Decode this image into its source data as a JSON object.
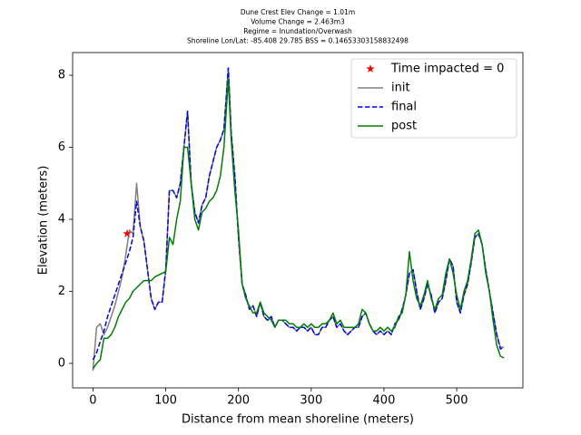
{
  "chart_data": {
    "type": "line",
    "title": [
      "Dune Crest Elev Change = 1.01m",
      "Volume Change = 2.463m3",
      "Regime = Inundation/Overwash",
      "Shoreline Lon/Lat: -85.408 29.785   BSS = 0.14653303158832498"
    ],
    "xlabel": "Distance from mean shoreline (meters)",
    "ylabel": "Elevation (meters)",
    "xlim": [
      -28,
      591
    ],
    "ylim": [
      -0.68,
      8.63
    ],
    "xticks": [
      0,
      100,
      200,
      300,
      400,
      500
    ],
    "yticks": [
      0,
      2,
      4,
      6,
      8
    ],
    "legend": "upper right",
    "x": [
      0,
      5,
      10,
      15,
      20,
      25,
      30,
      35,
      40,
      45,
      50,
      55,
      60,
      65,
      70,
      75,
      80,
      85,
      90,
      95,
      100,
      105,
      110,
      115,
      120,
      125,
      130,
      135,
      140,
      145,
      150,
      155,
      160,
      165,
      170,
      175,
      180,
      186,
      190,
      195,
      200,
      205,
      210,
      215,
      220,
      225,
      230,
      235,
      240,
      245,
      250,
      255,
      260,
      265,
      270,
      275,
      280,
      285,
      290,
      295,
      300,
      305,
      310,
      315,
      320,
      325,
      330,
      335,
      340,
      345,
      350,
      355,
      360,
      365,
      370,
      375,
      380,
      385,
      390,
      395,
      400,
      405,
      410,
      415,
      420,
      425,
      430,
      435,
      440,
      445,
      450,
      455,
      460,
      465,
      470,
      475,
      480,
      485,
      490,
      495,
      500,
      505,
      510,
      515,
      520,
      525,
      530,
      535,
      540,
      545,
      550,
      555,
      560,
      565
    ],
    "series": [
      {
        "name": "Time impacted = 0",
        "color": "#ff0000",
        "style": "marker",
        "x": [
          47
        ],
        "values": [
          3.6
        ]
      },
      {
        "name": "init",
        "color": "#808080",
        "style": "solid",
        "values": [
          -0.2,
          1.0,
          1.1,
          0.8,
          1.0,
          1.3,
          1.6,
          2.0,
          2.4,
          3.0,
          3.7,
          3.6,
          5.0,
          3.8,
          3.4,
          2.6,
          1.8,
          1.5,
          1.7,
          1.7,
          2.6,
          4.8,
          4.8,
          4.6,
          5.0,
          6.0,
          7.0,
          5.0,
          4.2,
          3.9,
          4.4,
          4.6,
          5.2,
          5.6,
          6.0,
          6.2,
          6.5,
          8.2,
          6.4,
          5.2,
          3.5,
          2.2,
          1.9,
          1.5,
          1.6,
          1.3,
          1.7,
          1.3,
          1.2,
          1.3,
          1.0,
          1.2,
          1.2,
          1.1,
          1.0,
          1.0,
          0.9,
          1.0,
          1.0,
          0.9,
          1.0,
          0.8,
          0.8,
          1.0,
          1.0,
          1.2,
          1.3,
          1.0,
          1.1,
          0.9,
          0.8,
          0.9,
          1.0,
          1.0,
          1.3,
          1.4,
          1.1,
          0.9,
          0.8,
          0.9,
          0.8,
          0.9,
          0.8,
          1.1,
          1.2,
          1.5,
          1.9,
          2.5,
          2.6,
          2.0,
          1.5,
          1.8,
          2.2,
          1.9,
          1.4,
          1.7,
          1.8,
          2.3,
          2.9,
          2.7,
          1.7,
          1.4,
          1.9,
          2.2,
          2.8,
          3.5,
          3.6,
          3.3,
          2.6,
          2.0,
          1.4,
          0.8,
          0.45,
          0.45
        ]
      },
      {
        "name": "final",
        "color": "#0000ff",
        "style": "dashed",
        "values": [
          0.1,
          0.3,
          0.6,
          0.9,
          1.3,
          1.6,
          1.9,
          2.2,
          2.5,
          2.8,
          3.1,
          3.5,
          4.5,
          3.8,
          3.4,
          2.6,
          1.8,
          1.5,
          1.7,
          1.7,
          2.6,
          4.8,
          4.8,
          4.6,
          5.0,
          6.0,
          7.0,
          5.0,
          4.2,
          3.9,
          4.4,
          4.6,
          5.2,
          5.6,
          6.0,
          6.2,
          6.5,
          8.2,
          6.4,
          5.2,
          3.5,
          2.2,
          1.9,
          1.5,
          1.6,
          1.3,
          1.7,
          1.3,
          1.2,
          1.3,
          1.0,
          1.2,
          1.2,
          1.1,
          1.0,
          1.0,
          0.9,
          1.0,
          1.0,
          0.9,
          1.0,
          0.8,
          0.8,
          1.0,
          1.0,
          1.2,
          1.3,
          1.0,
          1.1,
          0.9,
          0.8,
          0.9,
          1.0,
          1.0,
          1.3,
          1.4,
          1.1,
          0.9,
          0.8,
          0.9,
          0.8,
          0.9,
          0.8,
          1.1,
          1.2,
          1.5,
          1.9,
          2.5,
          2.6,
          2.0,
          1.5,
          1.8,
          2.2,
          1.9,
          1.4,
          1.7,
          1.8,
          2.3,
          2.9,
          2.7,
          1.7,
          1.4,
          1.9,
          2.2,
          2.8,
          3.5,
          3.6,
          3.3,
          2.6,
          2.0,
          1.4,
          0.8,
          0.4,
          0.45
        ]
      },
      {
        "name": "post",
        "color": "#008000",
        "style": "solid",
        "values": [
          -0.15,
          0.0,
          0.1,
          0.7,
          0.7,
          0.8,
          1.0,
          1.3,
          1.5,
          1.7,
          1.8,
          2.0,
          2.1,
          2.2,
          2.3,
          2.3,
          2.3,
          2.4,
          2.45,
          2.5,
          2.55,
          3.5,
          3.3,
          4.0,
          4.5,
          6.0,
          6.0,
          5.0,
          4.0,
          3.7,
          4.2,
          4.3,
          4.5,
          4.6,
          4.8,
          5.2,
          6.0,
          7.9,
          6.2,
          4.8,
          3.7,
          2.2,
          1.8,
          1.6,
          1.4,
          1.4,
          1.7,
          1.4,
          1.3,
          1.2,
          1.0,
          1.2,
          1.2,
          1.2,
          1.1,
          1.1,
          1.0,
          1.0,
          1.1,
          1.0,
          1.1,
          1.0,
          1.0,
          1.1,
          1.1,
          1.2,
          1.4,
          1.1,
          1.2,
          1.0,
          1.0,
          1.0,
          1.0,
          1.1,
          1.5,
          1.4,
          1.1,
          0.9,
          0.9,
          1.0,
          0.9,
          1.0,
          0.9,
          1.0,
          1.3,
          1.4,
          1.9,
          3.1,
          2.3,
          1.8,
          1.6,
          1.9,
          2.3,
          1.8,
          1.5,
          1.8,
          1.9,
          2.5,
          2.9,
          2.5,
          1.9,
          1.5,
          2.0,
          2.3,
          2.9,
          3.6,
          3.7,
          3.3,
          2.5,
          2.0,
          1.2,
          0.5,
          0.2,
          0.15
        ]
      }
    ]
  }
}
